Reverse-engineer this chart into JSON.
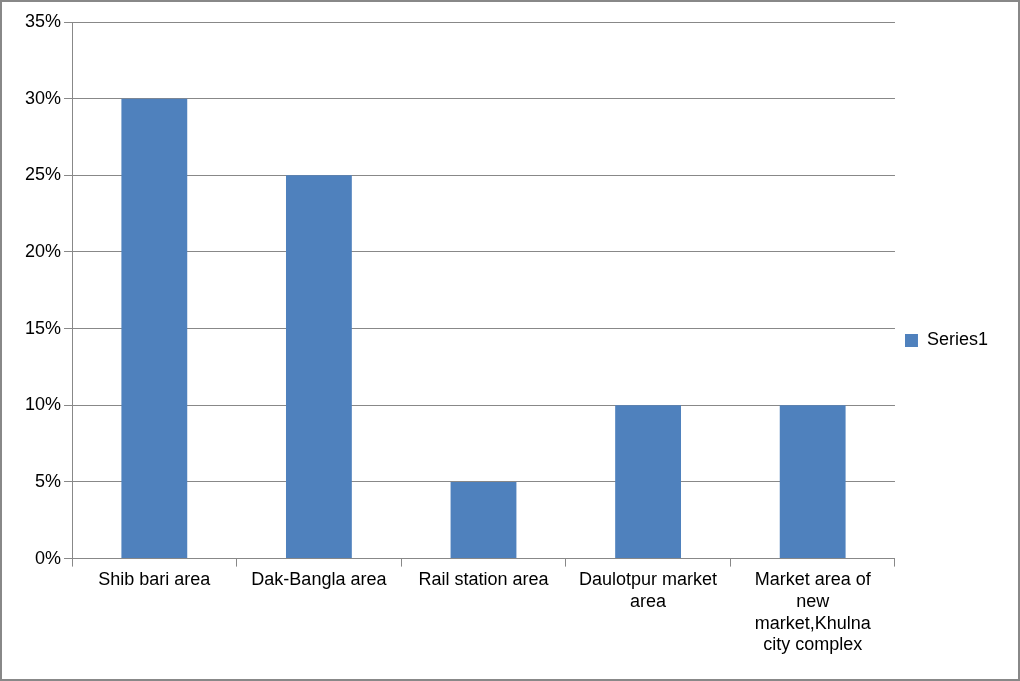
{
  "chart_data": {
    "type": "bar",
    "categories": [
      "Shib bari area",
      "Dak-Bangla area",
      "Rail station area",
      "Daulotpur market area",
      "Market area of new market,Khulna city complex"
    ],
    "series": [
      {
        "name": "Series1",
        "color": "#4f81bd",
        "values": [
          30,
          25,
          5,
          10,
          10
        ]
      }
    ],
    "ylim": [
      0,
      35
    ],
    "yticks": [
      {
        "value": 0,
        "label": "0%"
      },
      {
        "value": 5,
        "label": "5%"
      },
      {
        "value": 10,
        "label": "10%"
      },
      {
        "value": 15,
        "label": "15%"
      },
      {
        "value": 20,
        "label": "20%"
      },
      {
        "value": 25,
        "label": "25%"
      },
      {
        "value": 30,
        "label": "30%"
      },
      {
        "value": 35,
        "label": "35%"
      }
    ],
    "grid": "y",
    "legend": "right"
  }
}
